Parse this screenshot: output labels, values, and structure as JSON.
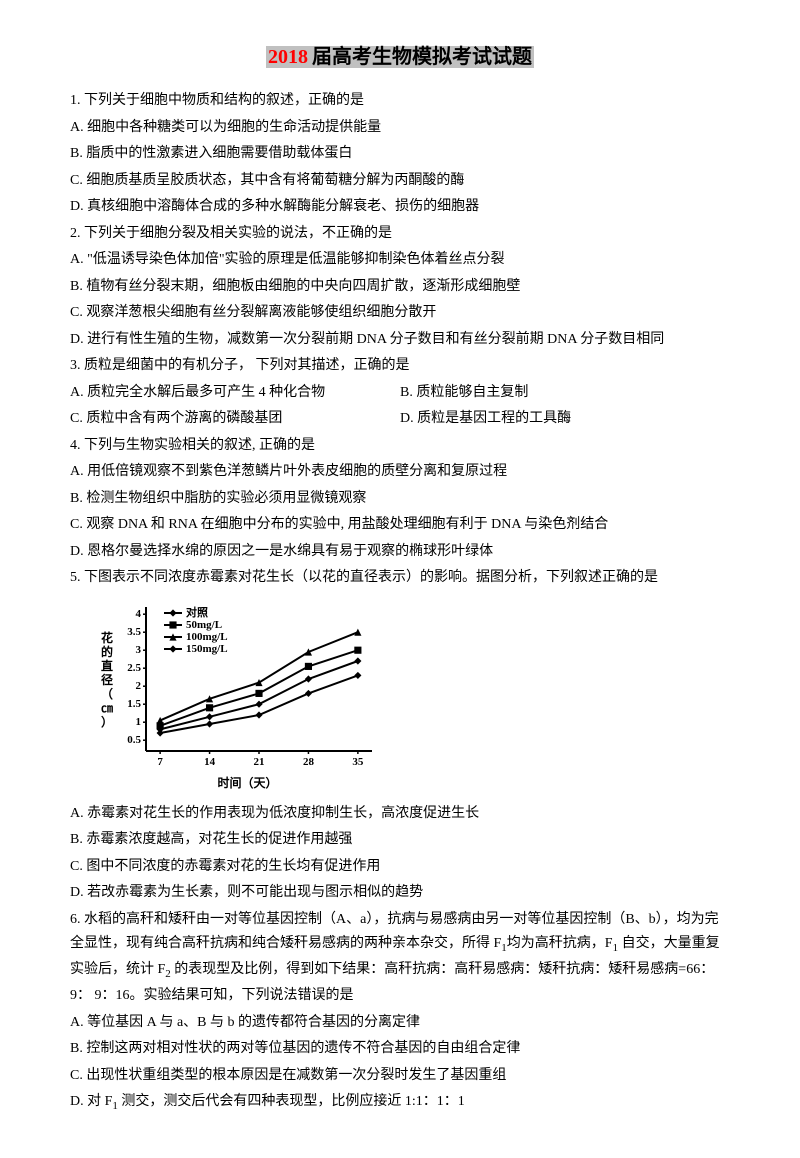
{
  "title": {
    "year": "2018",
    "rest": "届高考生物模拟考试试题"
  },
  "q1": {
    "stem": "1. 下列关于细胞中物质和结构的叙述，正确的是",
    "A": "A. 细胞中各种糖类可以为细胞的生命活动提供能量",
    "B": "B. 脂质中的性激素进入细胞需要借助载体蛋白",
    "C": "C. 细胞质基质呈胶质状态，其中含有将葡萄糖分解为丙酮酸的酶",
    "D": "D. 真核细胞中溶酶体合成的多种水解酶能分解衰老、损伤的细胞器"
  },
  "q2": {
    "stem": "2. 下列关于细胞分裂及相关实验的说法，不正确的是",
    "A": "A. \"低温诱导染色体加倍\"实验的原理是低温能够抑制染色体着丝点分裂",
    "B": "B. 植物有丝分裂末期，细胞板由细胞的中央向四周扩散，逐渐形成细胞壁",
    "C": "C. 观察洋葱根尖细胞有丝分裂解离液能够使组织细胞分散开",
    "D": "D. 进行有性生殖的生物，减数第一次分裂前期 DNA 分子数目和有丝分裂前期 DNA 分子数目相同"
  },
  "q3": {
    "stem": "3. 质粒是细菌中的有机分子， 下列对其描述，正确的是",
    "A": "A. 质粒完全水解后最多可产生 4 种化合物",
    "B": "B. 质粒能够自主复制",
    "C": "C. 质粒中含有两个游离的磷酸基团",
    "D": "D. 质粒是基因工程的工具酶"
  },
  "q4": {
    "stem": "4. 下列与生物实验相关的叙述, 正确的是",
    "A": "A. 用低倍镜观察不到紫色洋葱鳞片叶外表皮细胞的质壁分离和复原过程",
    "B": "B. 检测生物组织中脂肪的实验必须用显微镜观察",
    "C": "C. 观察 DNA 和 RNA 在细胞中分布的实验中, 用盐酸处理细胞有利于 DNA 与染色剂结合",
    "D": "D. 恩格尔曼选择水绵的原因之一是水绵具有易于观察的椭球形叶绿体"
  },
  "q5": {
    "stem": "5. 下图表示不同浓度赤霉素对花生长（以花的直径表示）的影响。据图分析，下列叙述正确的是",
    "A": "A. 赤霉素对花生长的作用表现为低浓度抑制生长，高浓度促进生长",
    "B": "B. 赤霉素浓度越高，对花生长的促进作用越强",
    "C": "C. 图中不同浓度的赤霉素对花的生长均有促进作用",
    "D": "D. 若改赤霉素为生长素，则不可能出现与图示相似的趋势"
  },
  "q6": {
    "stem1": "6. 水稻的高秆和矮秆由一对等位基因控制（A、a），抗病与易感病由另一对等位基因控制（B、b），均为完全显性，现有纯合高秆抗病和纯合矮秆易感病的两种亲本杂交，所得 F",
    "stem2": "均为高秆抗病，F",
    "stem3": " 自交，大量重复实验后，统计 F",
    "stem4": " 的表现型及比例，得到如下结果：高秆抗病：高秆易感病：矮秆抗病：矮秆易感病=66：9：  9：16。实验结果可知，下列说法错误的是",
    "A": "A. 等位基因 A 与 a、B 与 b 的遗传都符合基因的分离定律",
    "B": "B. 控制这两对相对性状的两对等位基因的遗传不符合基因的自由组合定律",
    "C": "C. 出现性状重组类型的根本原因是在减数第一次分裂时发生了基因重组",
    "D1": "D. 对 F",
    "D2": " 测交，测交后代会有四种表现型，比例应接近 1:1：1：1"
  },
  "chart": {
    "type": "line",
    "background": "#ffffff",
    "axis_color": "#000000",
    "line_color": "#000000",
    "x_values": [
      7,
      14,
      21,
      28,
      35
    ],
    "x_tick_labels": [
      "7",
      "14",
      "21",
      "28",
      "35"
    ],
    "y_ticks": [
      0.5,
      1,
      1.5,
      2,
      2.5,
      3,
      3.5,
      4
    ],
    "y_tick_labels": [
      "0.5",
      "1",
      "1.5",
      "2",
      "2.5",
      "3",
      "3.5",
      "4"
    ],
    "ylim": [
      0.2,
      4.2
    ],
    "xlim": [
      5,
      37
    ],
    "series": [
      {
        "label": "对照",
        "marker": "diamond",
        "y": [
          0.7,
          0.95,
          1.2,
          1.8,
          2.3
        ]
      },
      {
        "label": "50mg/L",
        "marker": "square",
        "y": [
          0.9,
          1.4,
          1.8,
          2.55,
          3.0
        ]
      },
      {
        "label": "100mg/L",
        "marker": "triangle",
        "y": [
          1.05,
          1.65,
          2.1,
          2.95,
          3.5
        ]
      },
      {
        "label": "150mg/L",
        "marker": "diamond",
        "y": [
          0.8,
          1.15,
          1.5,
          2.2,
          2.7
        ]
      }
    ],
    "ylabel": "花的直径（㎝）",
    "xlabel": "时间（天）",
    "font_size": 11,
    "line_width": 2,
    "marker_size": 5
  }
}
